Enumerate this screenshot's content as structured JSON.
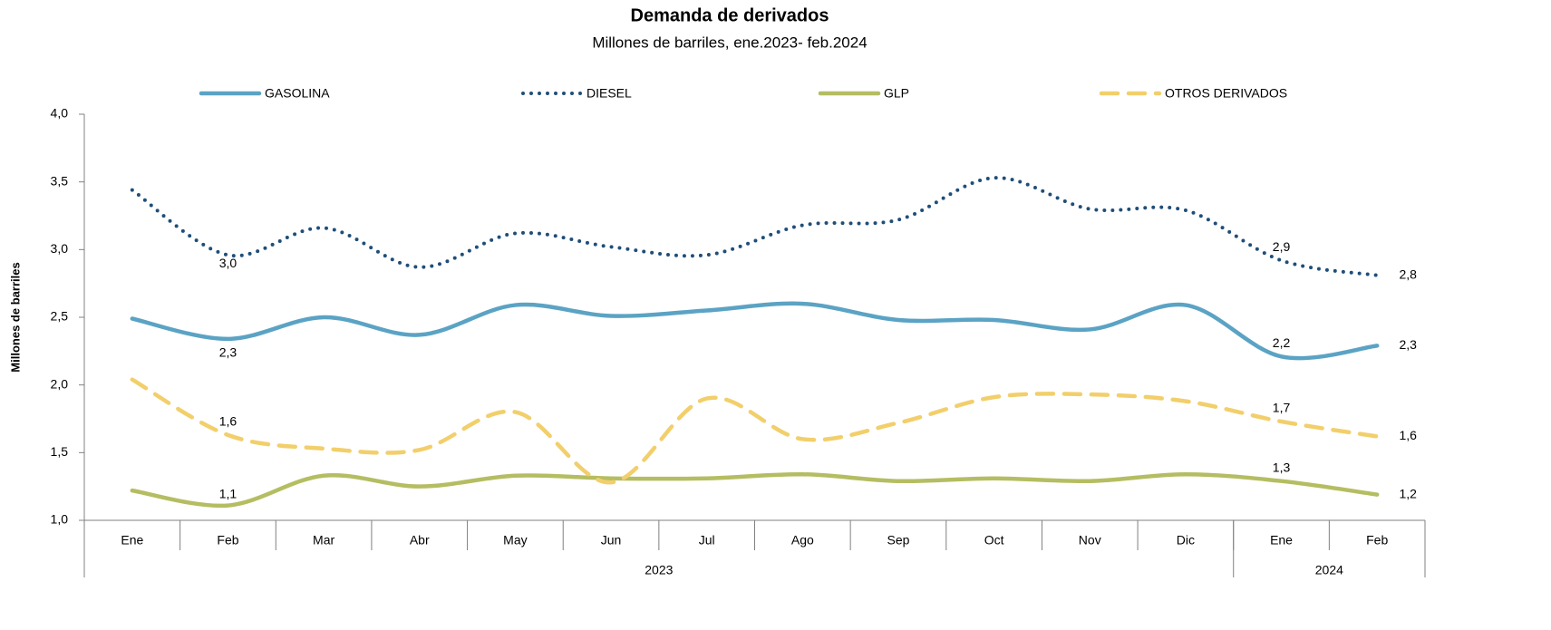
{
  "chart_data": {
    "type": "line",
    "title": "Demanda de derivados",
    "subtitle": "Millones de barriles, ene.2023- feb.2024",
    "y_label": "Millones de barriles",
    "categories": [
      "Ene",
      "Feb",
      "Mar",
      "Abr",
      "May",
      "Jun",
      "Jul",
      "Ago",
      "Sep",
      "Oct",
      "Nov",
      "Dic",
      "Ene",
      "Feb"
    ],
    "category_groups": [
      {
        "label": "2023",
        "count": 12
      },
      {
        "label": "2024",
        "count": 2
      }
    ],
    "ylim": [
      1.0,
      4.0
    ],
    "yticks": [
      {
        "value": 1.0,
        "label": "1,0"
      },
      {
        "value": 1.5,
        "label": "1,5"
      },
      {
        "value": 2.0,
        "label": "2,0"
      },
      {
        "value": 2.5,
        "label": "2,5"
      },
      {
        "value": 3.0,
        "label": "3,0"
      },
      {
        "value": 3.5,
        "label": "3,5"
      },
      {
        "value": 4.0,
        "label": "4,0"
      }
    ],
    "grid": false,
    "legend": "top",
    "series": [
      {
        "name": "GASOLINA",
        "color": "#5ba3c4",
        "style": "solid",
        "values": [
          2.49,
          2.34,
          2.5,
          2.37,
          2.59,
          2.51,
          2.55,
          2.6,
          2.48,
          2.48,
          2.41,
          2.59,
          2.21,
          2.29
        ],
        "value_labels": [
          null,
          "2,3",
          null,
          null,
          null,
          null,
          null,
          null,
          null,
          null,
          null,
          null,
          "2,2",
          "2,3"
        ]
      },
      {
        "name": "DIESEL",
        "color": "#1f4e79",
        "style": "dotted",
        "values": [
          3.44,
          2.96,
          3.16,
          2.87,
          3.12,
          3.02,
          2.96,
          3.18,
          3.22,
          3.53,
          3.3,
          3.29,
          2.92,
          2.81
        ],
        "value_labels": [
          null,
          "3,0",
          null,
          null,
          null,
          null,
          null,
          null,
          null,
          null,
          null,
          null,
          "2,9",
          "2,8"
        ]
      },
      {
        "name": "GLP",
        "color": "#b5bd62",
        "style": "solid",
        "values": [
          1.22,
          1.11,
          1.33,
          1.25,
          1.33,
          1.31,
          1.31,
          1.34,
          1.29,
          1.31,
          1.29,
          1.34,
          1.29,
          1.19
        ],
        "value_labels": [
          null,
          "1,1",
          null,
          null,
          null,
          null,
          null,
          null,
          null,
          null,
          null,
          null,
          "1,3",
          "1,2"
        ]
      },
      {
        "name": "OTROS DERIVADOS",
        "color": "#f2cf6b",
        "style": "dashed",
        "values": [
          2.04,
          1.63,
          1.53,
          1.52,
          1.8,
          1.28,
          1.9,
          1.6,
          1.72,
          1.91,
          1.93,
          1.88,
          1.73,
          1.62
        ],
        "value_labels": [
          null,
          "1,6",
          null,
          null,
          null,
          null,
          null,
          null,
          null,
          null,
          null,
          null,
          "1,7",
          "1,6"
        ]
      }
    ]
  }
}
